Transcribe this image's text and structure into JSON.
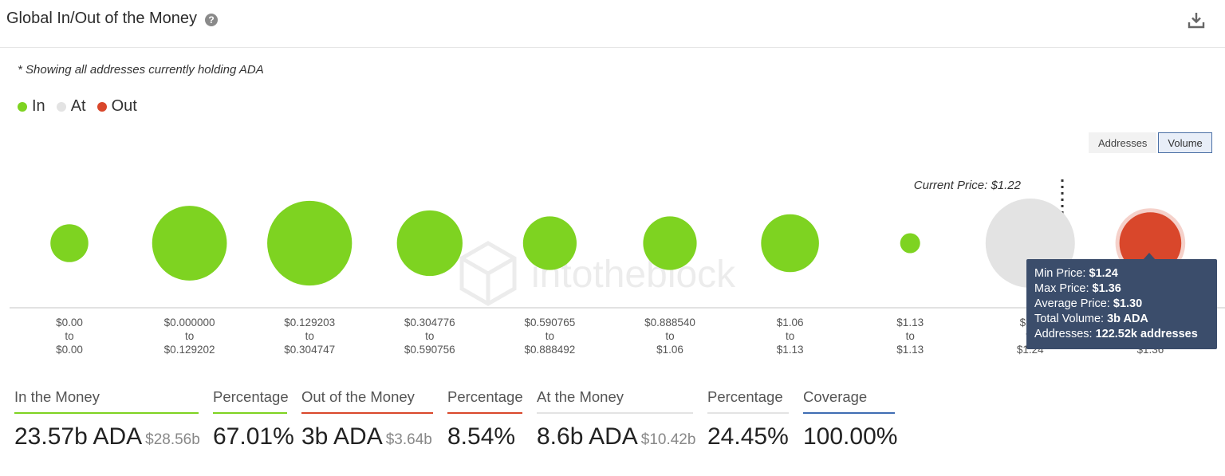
{
  "header": {
    "title": "Global In/Out of the Money",
    "help_icon": "question-circle-icon",
    "download_icon": "download-icon"
  },
  "note": "* Showing all addresses currently holding ADA",
  "legend": [
    {
      "label": "In",
      "color": "#7ed321"
    },
    {
      "label": "At",
      "color": "#e3e3e3"
    },
    {
      "label": "Out",
      "color": "#d9472b"
    }
  ],
  "toggle": {
    "addresses_label": "Addresses",
    "volume_label": "Volume",
    "selected": "Volume"
  },
  "watermark": "intotheblock",
  "chart_data": {
    "type": "scatter",
    "subtype": "bubble",
    "current_price_label": "Current Price: $1.22",
    "current_price": 1.22,
    "bins": [
      {
        "range": [
          "$0.00",
          "to",
          "$0.00"
        ],
        "status": "in",
        "volume_b": 0.9
      },
      {
        "range": [
          "$0.000000",
          "to",
          "$0.129202"
        ],
        "status": "in",
        "volume_b": 3.5
      },
      {
        "range": [
          "$0.129203",
          "to",
          "$0.304747"
        ],
        "status": "in",
        "volume_b": 4.5
      },
      {
        "range": [
          "$0.304776",
          "to",
          "$0.590756"
        ],
        "status": "in",
        "volume_b": 2.7
      },
      {
        "range": [
          "$0.590765",
          "to",
          "$0.888492"
        ],
        "status": "in",
        "volume_b": 1.8
      },
      {
        "range": [
          "$0.888540",
          "to",
          "$1.06"
        ],
        "status": "in",
        "volume_b": 1.8
      },
      {
        "range": [
          "$1.06",
          "to",
          "$1.13"
        ],
        "status": "in",
        "volume_b": 2.1
      },
      {
        "range": [
          "$1.13",
          "to",
          "$1.13"
        ],
        "status": "in",
        "volume_b": 0.25
      },
      {
        "range": [
          "$1.1",
          "to",
          "$1.24"
        ],
        "status": "at",
        "volume_b": 5.0
      },
      {
        "range": [
          "",
          "",
          "$1.36"
        ],
        "status": "out",
        "volume_b": 2.4
      }
    ]
  },
  "tooltip": {
    "min_price_label": "Min Price: ",
    "min_price": "$1.24",
    "max_price_label": "Max Price: ",
    "max_price": "$1.36",
    "avg_price_label": "Average Price: ",
    "avg_price": "$1.30",
    "total_volume_label": "Total Volume: ",
    "total_volume": "3b ADA",
    "addresses_label": "Addresses: ",
    "addresses": "122.52k addresses"
  },
  "stats": [
    {
      "label": "In the Money",
      "value": "23.57b ADA",
      "sub": "$28.56b",
      "color": "#7ed321"
    },
    {
      "label": "Percentage",
      "value": "67.01%",
      "sub": "",
      "color": "#7ed321"
    },
    {
      "label": "Out of the Money",
      "value": "3b ADA",
      "sub": "$3.64b",
      "color": "#d9472b"
    },
    {
      "label": "Percentage",
      "value": "8.54%",
      "sub": "",
      "color": "#d9472b"
    },
    {
      "label": "At the Money",
      "value": "8.6b ADA",
      "sub": "$10.42b",
      "color": "#e3e3e3"
    },
    {
      "label": "Percentage",
      "value": "24.45%",
      "sub": "",
      "color": "#e3e3e3"
    },
    {
      "label": "Coverage",
      "value": "100.00%",
      "sub": "",
      "color": "#3f6db3"
    }
  ]
}
